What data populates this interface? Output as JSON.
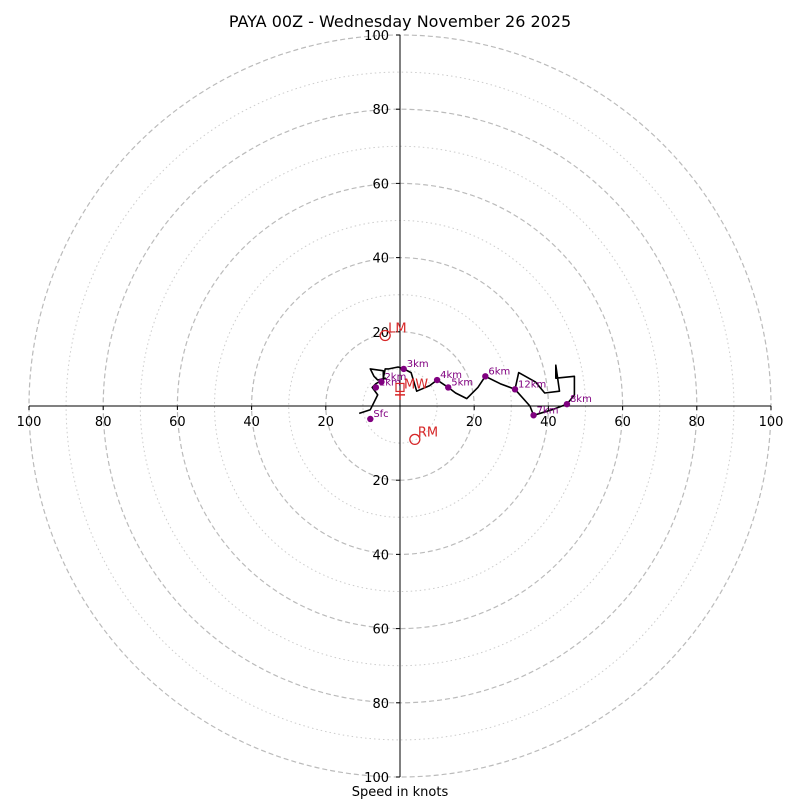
{
  "chart_data": {
    "type": "hodograph",
    "title": "PAYA 00Z - Wednesday November 26 2025",
    "xlabel": "Speed in knots",
    "range": [
      -100,
      100
    ],
    "ring_values": [
      20,
      40,
      60,
      80,
      100
    ],
    "minor_ring_values": [
      10,
      30,
      50,
      70,
      90
    ],
    "tick_labels": {
      "left": [
        "100",
        "80",
        "60",
        "40",
        "20"
      ],
      "right": [
        "20",
        "40",
        "60",
        "80",
        "100"
      ],
      "top": [
        "100",
        "80",
        "60",
        "40",
        "20"
      ],
      "bottom": [
        "20",
        "40",
        "60",
        "80",
        "100"
      ]
    },
    "wind_profile": [
      {
        "u": -11,
        "v": -2
      },
      {
        "u": -8,
        "v": -1
      },
      {
        "u": -7,
        "v": 1
      },
      {
        "u": -6,
        "v": 3
      },
      {
        "u": -7.5,
        "v": 5
      },
      {
        "u": -6.5,
        "v": 6
      },
      {
        "u": -4,
        "v": 7.5
      },
      {
        "u": -6,
        "v": 7
      },
      {
        "u": -7,
        "v": 8
      },
      {
        "u": -8,
        "v": 10
      },
      {
        "u": -4.5,
        "v": 9.5
      },
      {
        "u": -4.5,
        "v": 7.5
      },
      {
        "u": -4,
        "v": 10
      },
      {
        "u": -3,
        "v": 10
      },
      {
        "u": -0.5,
        "v": 10.5
      },
      {
        "u": 1,
        "v": 10
      },
      {
        "u": 3,
        "v": 9
      },
      {
        "u": 4.5,
        "v": 4
      },
      {
        "u": 8,
        "v": 5.5
      },
      {
        "u": 10,
        "v": 7
      },
      {
        "u": 13,
        "v": 5
      },
      {
        "u": 15,
        "v": 3.5
      },
      {
        "u": 18,
        "v": 2
      },
      {
        "u": 21,
        "v": 5
      },
      {
        "u": 23,
        "v": 8
      },
      {
        "u": 27,
        "v": 6
      },
      {
        "u": 31,
        "v": 4.5
      },
      {
        "u": 35,
        "v": 0
      },
      {
        "u": 36,
        "v": -2.5
      },
      {
        "u": 41,
        "v": -1
      },
      {
        "u": 45,
        "v": 0.5
      },
      {
        "u": 47,
        "v": 3
      },
      {
        "u": 47,
        "v": 8
      },
      {
        "u": 42,
        "v": 7.5
      },
      {
        "u": 42,
        "v": 11
      },
      {
        "u": 43,
        "v": 4
      },
      {
        "u": 39,
        "v": 3.5
      },
      {
        "u": 36.5,
        "v": 6.5
      },
      {
        "u": 32,
        "v": 9
      },
      {
        "u": 31,
        "v": 4.5
      }
    ],
    "height_markers": [
      {
        "label": "Sfc",
        "u": -8,
        "v": -3.5
      },
      {
        "label": "1km",
        "u": -6.5,
        "v": 5
      },
      {
        "label": "2km",
        "u": -5,
        "v": 6.5
      },
      {
        "label": "3km",
        "u": 1,
        "v": 10
      },
      {
        "label": "4km",
        "u": 10,
        "v": 7
      },
      {
        "label": "5km",
        "u": 13,
        "v": 5
      },
      {
        "label": "6km",
        "u": 23,
        "v": 8
      },
      {
        "label": "7km",
        "u": 36,
        "v": -2.5
      },
      {
        "label": "8km",
        "u": 45,
        "v": 0.5
      },
      {
        "label": "12km",
        "u": 31,
        "v": 4.5
      }
    ],
    "storm_motion": {
      "LM": {
        "label": "LM",
        "u": -4,
        "v": 19
      },
      "RM": {
        "label": "RM",
        "u": 4,
        "v": -9
      },
      "MW": {
        "label": "MW",
        "u": 0,
        "v": 5
      },
      "mean_marker": {
        "u": 0,
        "v": 3
      }
    },
    "colors": {
      "profile": "#000000",
      "height_marker": "#800080",
      "storm_motion": "#d62728",
      "ring_major": "#bbbbbb",
      "ring_minor": "#cccccc",
      "axes": "#000000"
    }
  }
}
